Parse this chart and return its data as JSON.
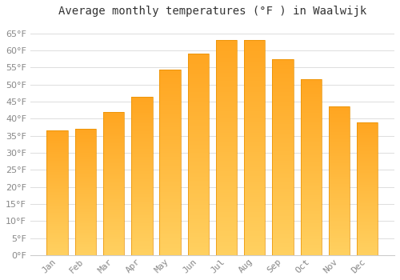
{
  "title": "Average monthly temperatures (°F ) in Waalwijk",
  "months": [
    "Jan",
    "Feb",
    "Mar",
    "Apr",
    "May",
    "Jun",
    "Jul",
    "Aug",
    "Sep",
    "Oct",
    "Nov",
    "Dec"
  ],
  "values": [
    36.5,
    37.0,
    42.0,
    46.5,
    54.5,
    59.0,
    63.0,
    63.0,
    57.5,
    51.5,
    43.5,
    39.0
  ],
  "bar_color_top": "#FFA520",
  "bar_color_bottom": "#FFD060",
  "bar_edge_color": "#E89000",
  "background_color": "#FFFFFF",
  "grid_color": "#DDDDDD",
  "ylim": [
    0,
    68
  ],
  "yticks": [
    0,
    5,
    10,
    15,
    20,
    25,
    30,
    35,
    40,
    45,
    50,
    55,
    60,
    65
  ],
  "title_fontsize": 10,
  "tick_fontsize": 8,
  "tick_font_color": "#888888",
  "title_color": "#333333"
}
